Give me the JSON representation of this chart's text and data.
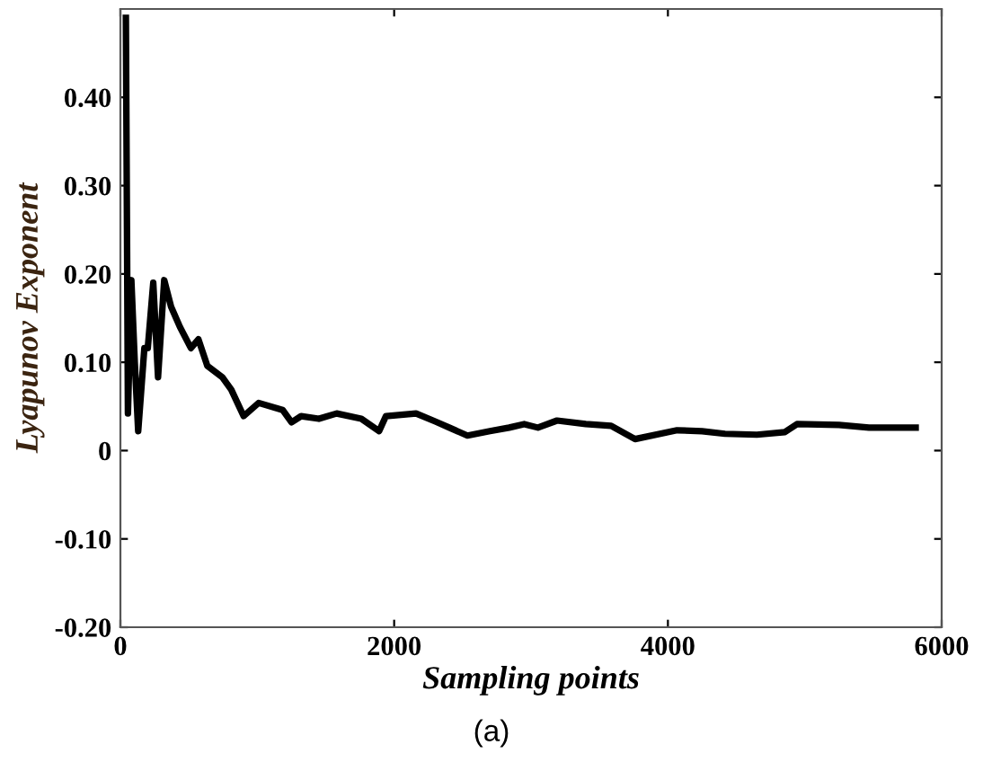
{
  "chart_data": {
    "type": "line",
    "xlabel": "Sampling points",
    "ylabel": "Lyapunov Exponent",
    "annotations": [
      "(a)"
    ],
    "xlim": [
      0,
      6000
    ],
    "ylim": [
      -0.2,
      0.5
    ],
    "xticks": [
      0,
      2000,
      4000,
      6000
    ],
    "yticks": [
      {
        "value": -0.2,
        "label": "-0.20"
      },
      {
        "value": -0.1,
        "label": "-0.10"
      },
      {
        "value": 0,
        "label": "0"
      },
      {
        "value": 0.1,
        "label": "0.10"
      },
      {
        "value": 0.2,
        "label": "0.20"
      },
      {
        "value": 0.3,
        "label": "0.30"
      },
      {
        "value": 0.4,
        "label": "0.40"
      }
    ],
    "grid": false,
    "legend": false,
    "marker": "none",
    "line_style": "solid",
    "series": [
      {
        "color": "#000000",
        "x": [
          40,
          55,
          80,
          105,
          130,
          175,
          200,
          240,
          275,
          320,
          370,
          435,
          515,
          570,
          635,
          745,
          810,
          900,
          1010,
          1185,
          1250,
          1320,
          1450,
          1580,
          1760,
          1890,
          1940,
          2160,
          2300,
          2403,
          2535,
          2700,
          2840,
          2950,
          3050,
          3190,
          3400,
          3585,
          3760,
          4067,
          4250,
          4417,
          4650,
          4855,
          4943,
          5250,
          5469,
          5810
        ],
        "values": [
          0.49,
          0.042,
          0.193,
          0.1,
          0.022,
          0.116,
          0.116,
          0.19,
          0.083,
          0.193,
          0.163,
          0.14,
          0.116,
          0.126,
          0.096,
          0.083,
          0.069,
          0.039,
          0.054,
          0.046,
          0.032,
          0.039,
          0.036,
          0.042,
          0.036,
          0.022,
          0.039,
          0.042,
          0.033,
          0.026,
          0.017,
          0.022,
          0.026,
          0.03,
          0.026,
          0.034,
          0.03,
          0.028,
          0.013,
          0.023,
          0.022,
          0.019,
          0.018,
          0.021,
          0.03,
          0.029,
          0.026,
          0.026
        ]
      }
    ]
  }
}
